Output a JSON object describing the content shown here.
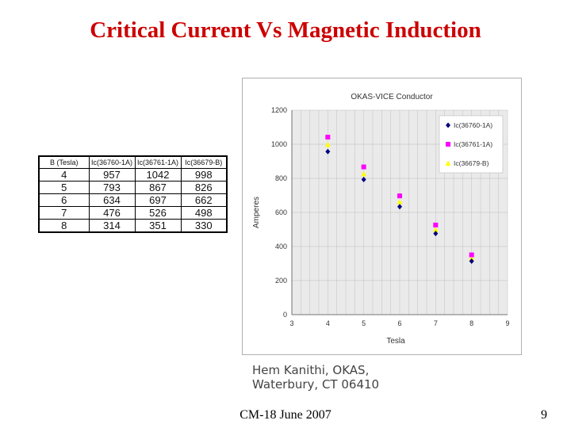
{
  "slide": {
    "title": "Critical Current Vs Magnetic Induction",
    "footer": "CM-18 June 2007",
    "page_number": "9",
    "credit_line1": "Hem Kanithi, OKAS,",
    "credit_line2": "Waterbury, CT 06410"
  },
  "table": {
    "headers": [
      "B (Tesla)",
      "Ic(36760-1A)",
      "Ic(36761-1A)",
      "Ic(36679-B)"
    ],
    "rows": [
      [
        "4",
        "957",
        "1042",
        "998"
      ],
      [
        "5",
        "793",
        "867",
        "826"
      ],
      [
        "6",
        "634",
        "697",
        "662"
      ],
      [
        "7",
        "476",
        "526",
        "498"
      ],
      [
        "8",
        "314",
        "351",
        "330"
      ]
    ]
  },
  "chart_data": {
    "type": "scatter",
    "title": "OKAS-VICE Conductor",
    "xlabel": "Tesla",
    "ylabel": "Amperes",
    "xlim": [
      3,
      9
    ],
    "ylim": [
      0,
      1200
    ],
    "xticks": [
      3,
      4,
      5,
      6,
      7,
      8,
      9
    ],
    "yticks": [
      0,
      200,
      400,
      600,
      800,
      1000,
      1200
    ],
    "grid": true,
    "legend_position": "top-right",
    "x": [
      4,
      5,
      6,
      7,
      8
    ],
    "series": [
      {
        "name": "Ic(36760-1A)",
        "values": [
          957,
          793,
          634,
          476,
          314
        ],
        "color": "#000080",
        "marker": "diamond"
      },
      {
        "name": "Ic(36761-1A)",
        "values": [
          1042,
          867,
          697,
          526,
          351
        ],
        "color": "#ff00ff",
        "marker": "square"
      },
      {
        "name": "Ic(36679-B)",
        "values": [
          998,
          826,
          662,
          498,
          330
        ],
        "color": "#ffff00",
        "marker": "triangle"
      }
    ]
  }
}
